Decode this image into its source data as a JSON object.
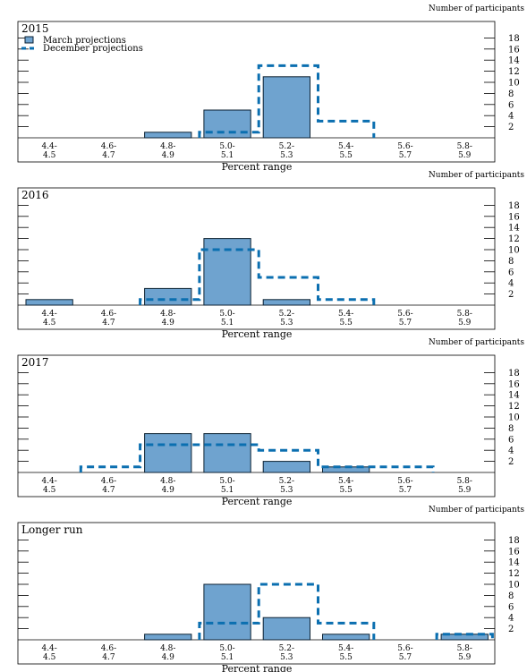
{
  "colors": {
    "bar_fill": "#6fa3cf",
    "bar_edge": "#0d2233",
    "dec_line": "#0b6fb0",
    "frame": "#000000"
  },
  "chart_data": [
    {
      "type": "bar",
      "title": "2015",
      "xlabel": "Percent range",
      "ylabel": "Number of participants",
      "categories": [
        "4.4-\n4.5",
        "4.6-\n4.7",
        "4.8-\n4.9",
        "5.0-\n5.1",
        "5.2-\n5.3",
        "5.4-\n5.5",
        "5.6-\n5.7",
        "5.8-\n5.9"
      ],
      "ylim": [
        0,
        20
      ],
      "yticks": [
        2,
        4,
        6,
        8,
        10,
        12,
        14,
        16,
        18
      ],
      "series": [
        {
          "name": "March projections",
          "style": "bar",
          "values": [
            0,
            0,
            1,
            5,
            11,
            0,
            0,
            0
          ]
        },
        {
          "name": "December projections",
          "style": "dashed-step",
          "values": [
            0,
            0,
            0,
            1,
            13,
            3,
            0,
            0
          ]
        }
      ],
      "legend": "top-left"
    },
    {
      "type": "bar",
      "title": "2016",
      "xlabel": "Percent range",
      "ylabel": "Number of participants",
      "categories": [
        "4.4-\n4.5",
        "4.6-\n4.7",
        "4.8-\n4.9",
        "5.0-\n5.1",
        "5.2-\n5.3",
        "5.4-\n5.5",
        "5.6-\n5.7",
        "5.8-\n5.9"
      ],
      "ylim": [
        0,
        20
      ],
      "yticks": [
        2,
        4,
        6,
        8,
        10,
        12,
        14,
        16,
        18
      ],
      "series": [
        {
          "name": "March projections",
          "style": "bar",
          "values": [
            1,
            0,
            3,
            12,
            1,
            0,
            0,
            0
          ]
        },
        {
          "name": "December projections",
          "style": "dashed-step",
          "values": [
            0,
            0,
            1,
            10,
            5,
            1,
            0,
            0
          ]
        }
      ]
    },
    {
      "type": "bar",
      "title": "2017",
      "xlabel": "Percent range",
      "ylabel": "Number of participants",
      "categories": [
        "4.4-\n4.5",
        "4.6-\n4.7",
        "4.8-\n4.9",
        "5.0-\n5.1",
        "5.2-\n5.3",
        "5.4-\n5.5",
        "5.6-\n5.7",
        "5.8-\n5.9"
      ],
      "ylim": [
        0,
        20
      ],
      "yticks": [
        2,
        4,
        6,
        8,
        10,
        12,
        14,
        16,
        18
      ],
      "series": [
        {
          "name": "March projections",
          "style": "bar",
          "values": [
            0,
            0,
            7,
            7,
            2,
            1,
            0,
            0
          ]
        },
        {
          "name": "December projections",
          "style": "dashed-step",
          "values": [
            0,
            1,
            5,
            5,
            4,
            1,
            1,
            0
          ]
        }
      ]
    },
    {
      "type": "bar",
      "title": "Longer run",
      "xlabel": "Percent range",
      "ylabel": "Number of participants",
      "categories": [
        "4.4-\n4.5",
        "4.6-\n4.7",
        "4.8-\n4.9",
        "5.0-\n5.1",
        "5.2-\n5.3",
        "5.4-\n5.5",
        "5.6-\n5.7",
        "5.8-\n5.9"
      ],
      "ylim": [
        0,
        20
      ],
      "yticks": [
        2,
        4,
        6,
        8,
        10,
        12,
        14,
        16,
        18
      ],
      "series": [
        {
          "name": "March projections",
          "style": "bar",
          "values": [
            0,
            0,
            1,
            10,
            4,
            1,
            0,
            1
          ]
        },
        {
          "name": "December projections",
          "style": "dashed-step",
          "values": [
            0,
            0,
            0,
            3,
            10,
            3,
            0,
            1
          ]
        }
      ]
    }
  ]
}
